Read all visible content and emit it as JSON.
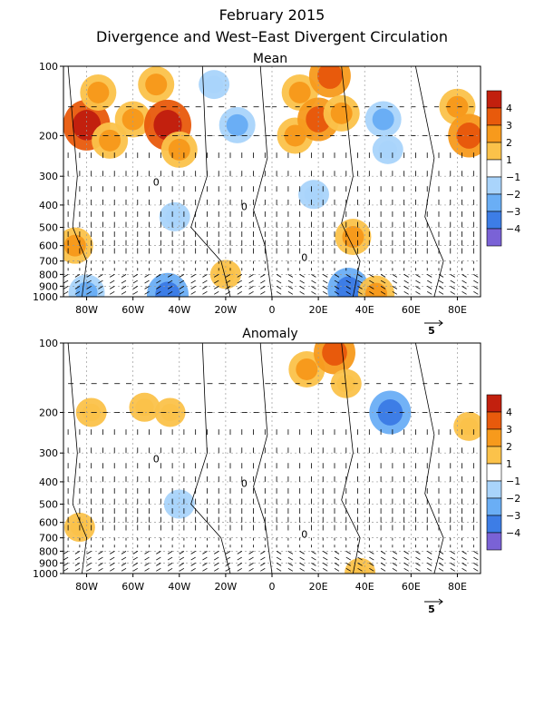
{
  "title": "February 2015",
  "subtitle": "Divergence and West–East Divergent Circulation",
  "colorbar": {
    "labels": [
      "4",
      "3",
      "2",
      "1",
      "−1",
      "−2",
      "−3",
      "−4"
    ],
    "colors": [
      "#c2200e",
      "#e85a0c",
      "#f79a1c",
      "#fbc24a",
      "#ffffff",
      "#a9d4fb",
      "#6aaef5",
      "#3d7de6",
      "#7a62d6"
    ]
  },
  "chart_data": [
    {
      "type": "heatmap",
      "title": "Mean",
      "xlabel": "",
      "ylabel": "",
      "x_ticks": [
        "80W",
        "60W",
        "40W",
        "20W",
        "0",
        "20E",
        "40E",
        "60E",
        "80E"
      ],
      "x_tick_values": [
        -80,
        -60,
        -40,
        -20,
        0,
        20,
        40,
        60,
        80
      ],
      "xlim": [
        -90,
        90
      ],
      "y_ticks": [
        "100",
        "200",
        "300",
        "400",
        "500",
        "600",
        "700",
        "800",
        "900",
        "1000"
      ],
      "y_tick_values": [
        100,
        200,
        300,
        400,
        500,
        600,
        700,
        800,
        900,
        1000
      ],
      "ylim": [
        1000,
        100
      ],
      "y_scale": "log",
      "contour_label": "0",
      "reference_vector": "5",
      "divergence_cells": [
        {
          "lon": -80,
          "p": 180,
          "v": 4
        },
        {
          "lon": -75,
          "p": 130,
          "v": 2
        },
        {
          "lon": -70,
          "p": 210,
          "v": 2
        },
        {
          "lon": -60,
          "p": 170,
          "v": 2
        },
        {
          "lon": -50,
          "p": 120,
          "v": 2
        },
        {
          "lon": -45,
          "p": 180,
          "v": 4
        },
        {
          "lon": -40,
          "p": 230,
          "v": 2
        },
        {
          "lon": -25,
          "p": 120,
          "v": -1
        },
        {
          "lon": -15,
          "p": 180,
          "v": -2
        },
        {
          "lon": 10,
          "p": 200,
          "v": 2
        },
        {
          "lon": 12,
          "p": 130,
          "v": 2
        },
        {
          "lon": 20,
          "p": 170,
          "v": 3
        },
        {
          "lon": 25,
          "p": 110,
          "v": 3
        },
        {
          "lon": 30,
          "p": 160,
          "v": 2
        },
        {
          "lon": 18,
          "p": 360,
          "v": -1
        },
        {
          "lon": 48,
          "p": 170,
          "v": -2
        },
        {
          "lon": 50,
          "p": 230,
          "v": -1
        },
        {
          "lon": 80,
          "p": 150,
          "v": 2
        },
        {
          "lon": 85,
          "p": 200,
          "v": 3
        },
        {
          "lon": -42,
          "p": 450,
          "v": -1
        },
        {
          "lon": -85,
          "p": 600,
          "v": 2
        },
        {
          "lon": 35,
          "p": 550,
          "v": 2
        },
        {
          "lon": -20,
          "p": 800,
          "v": 1
        },
        {
          "lon": -80,
          "p": 960,
          "v": -2
        },
        {
          "lon": -45,
          "p": 980,
          "v": -3
        },
        {
          "lon": 33,
          "p": 930,
          "v": -3
        },
        {
          "lon": 45,
          "p": 970,
          "v": 2
        }
      ]
    },
    {
      "type": "heatmap",
      "title": "Anomaly",
      "xlabel": "",
      "ylabel": "",
      "x_ticks": [
        "80W",
        "60W",
        "40W",
        "20W",
        "0",
        "20E",
        "40E",
        "60E",
        "80E"
      ],
      "x_tick_values": [
        -80,
        -60,
        -40,
        -20,
        0,
        20,
        40,
        60,
        80
      ],
      "xlim": [
        -90,
        90
      ],
      "y_ticks": [
        "100",
        "200",
        "300",
        "400",
        "500",
        "600",
        "700",
        "800",
        "900",
        "1000"
      ],
      "y_tick_values": [
        100,
        200,
        300,
        400,
        500,
        600,
        700,
        800,
        900,
        1000
      ],
      "ylim": [
        1000,
        100
      ],
      "y_scale": "log",
      "contour_label": "0",
      "reference_vector": "5",
      "divergence_cells": [
        {
          "lon": 15,
          "p": 130,
          "v": 2
        },
        {
          "lon": 27,
          "p": 110,
          "v": 3
        },
        {
          "lon": 32,
          "p": 150,
          "v": 1
        },
        {
          "lon": -78,
          "p": 200,
          "v": 1
        },
        {
          "lon": -44,
          "p": 200,
          "v": 1
        },
        {
          "lon": -55,
          "p": 190,
          "v": 1
        },
        {
          "lon": 51,
          "p": 200,
          "v": -3
        },
        {
          "lon": 85,
          "p": 230,
          "v": 1
        },
        {
          "lon": -40,
          "p": 500,
          "v": -1
        },
        {
          "lon": -83,
          "p": 630,
          "v": 1
        },
        {
          "lon": 38,
          "p": 990,
          "v": 1
        }
      ]
    }
  ]
}
